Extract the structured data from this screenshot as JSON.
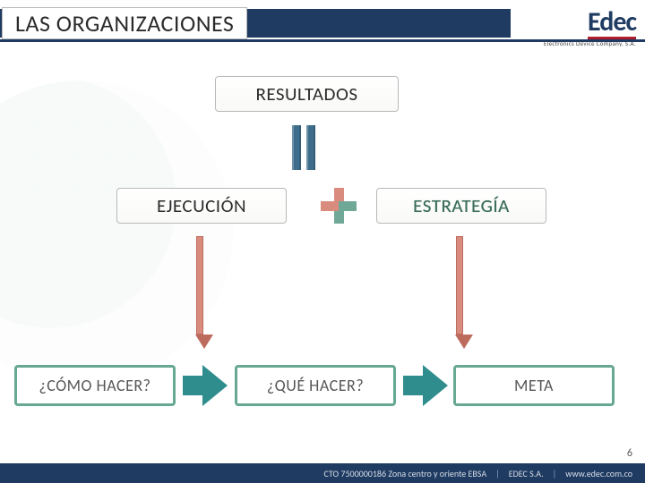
{
  "header": {
    "title": "LAS ORGANIZACIONES",
    "logo_name": "Edec",
    "logo_sub": "Electronics Device Company, S.A."
  },
  "boxes": {
    "resultados": "RESULTADOS",
    "ejecucion": "EJECUCIÓN",
    "estrategia": "ESTRATEGÍA",
    "como": "¿CÓMO HACER?",
    "que": "¿QUÉ HACER?",
    "meta": "META"
  },
  "footer": {
    "left": "CTO 7500000186 Zona centro y oriente EBSA",
    "mid": "EDEC S.A.",
    "right": "www.edec.com.co"
  },
  "page_number": "6",
  "colors": {
    "brand_navy": "#1f3b62",
    "brand_red": "#b01e2e",
    "teal": "#2f8d8d",
    "teal_border": "#66a892",
    "coral": "#d98b7e",
    "text": "#2b2b2b"
  }
}
